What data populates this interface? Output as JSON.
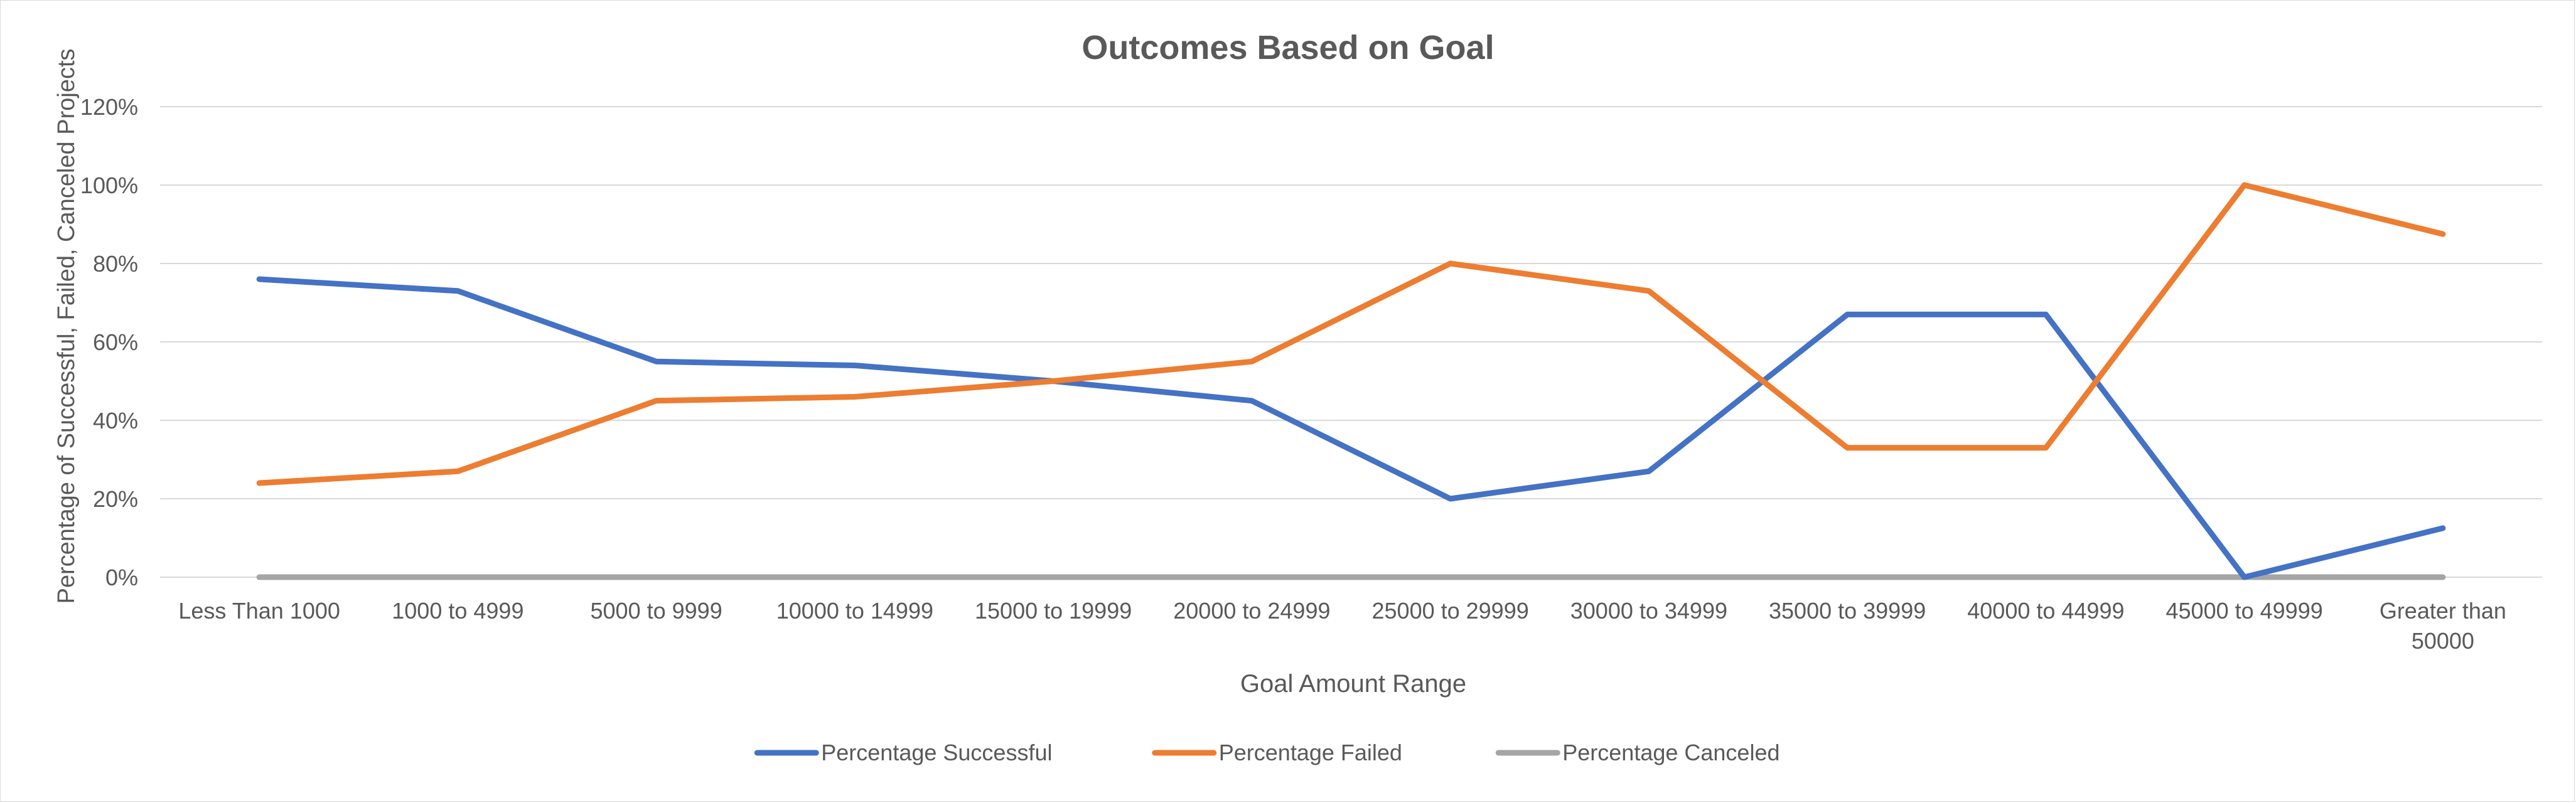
{
  "chart_data": {
    "type": "line",
    "title": "Outcomes Based on Goal",
    "xlabel": "Goal Amount Range",
    "ylabel": "Percentage of Successful, Failed,  Canceled Projects",
    "categories": [
      "Less Than 1000",
      "1000 to 4999",
      "5000 to 9999",
      "10000 to 14999",
      "15000 to 19999",
      "20000 to 24999",
      "25000 to 29999",
      "30000 to 34999",
      "35000 to 39999",
      "40000 to 44999",
      "45000 to 49999",
      "Greater than 50000"
    ],
    "y_ticks": [
      "0%",
      "20%",
      "40%",
      "60%",
      "80%",
      "100%",
      "120%"
    ],
    "ylim": [
      0,
      120
    ],
    "y_unit": "%",
    "grid": true,
    "legend_position": "bottom",
    "series": [
      {
        "name": "Percentage Successful",
        "color": "#4472C4",
        "values": [
          76,
          73,
          55,
          54,
          50,
          45,
          20,
          27,
          67,
          67,
          0,
          12.5
        ]
      },
      {
        "name": "Percentage Failed",
        "color": "#ED7D31",
        "values": [
          24,
          27,
          45,
          46,
          50,
          55,
          80,
          73,
          33,
          33,
          100,
          87.5
        ]
      },
      {
        "name": "Percentage Canceled",
        "color": "#A5A5A5",
        "values": [
          0,
          0,
          0,
          0,
          0,
          0,
          0,
          0,
          0,
          0,
          0,
          0
        ]
      }
    ]
  }
}
